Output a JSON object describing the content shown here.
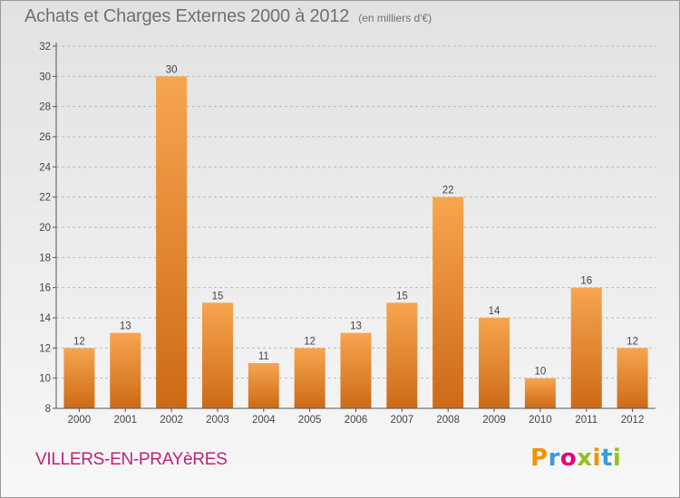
{
  "header": {
    "title": "Achats et Charges Externes 2000 à 2012",
    "unit": "(en milliers d'€)"
  },
  "footer": {
    "town": "VILLERS-EN-PRAYèRES",
    "logo_letters": [
      "P",
      "r",
      "o",
      "x",
      "i",
      "t",
      "i"
    ],
    "logo_colors": [
      "#f39200",
      "#3c9bd6",
      "#e3007a",
      "#95c11f",
      "#f39200",
      "#3c9bd6",
      "#95c11f"
    ]
  },
  "colors": {
    "bar_light": "#f7a54f",
    "bar_dark": "#cd6a16",
    "axis": "#555555",
    "grid": "#b9b9b9"
  },
  "chart_data": {
    "type": "bar",
    "categories": [
      "2000",
      "2001",
      "2002",
      "2003",
      "2004",
      "2005",
      "2006",
      "2007",
      "2008",
      "2009",
      "2010",
      "2011",
      "2012"
    ],
    "values": [
      12,
      13,
      30,
      15,
      11,
      12,
      13,
      15,
      22,
      14,
      10,
      16,
      12
    ],
    "title": "Achats et Charges Externes 2000 à 2012",
    "xlabel": "",
    "ylabel": "",
    "ylim": [
      8,
      32
    ],
    "yticks": [
      8,
      10,
      12,
      14,
      16,
      18,
      20,
      22,
      24,
      26,
      28,
      30,
      32
    ],
    "grid": "horizontal dashed",
    "legend": "none"
  }
}
